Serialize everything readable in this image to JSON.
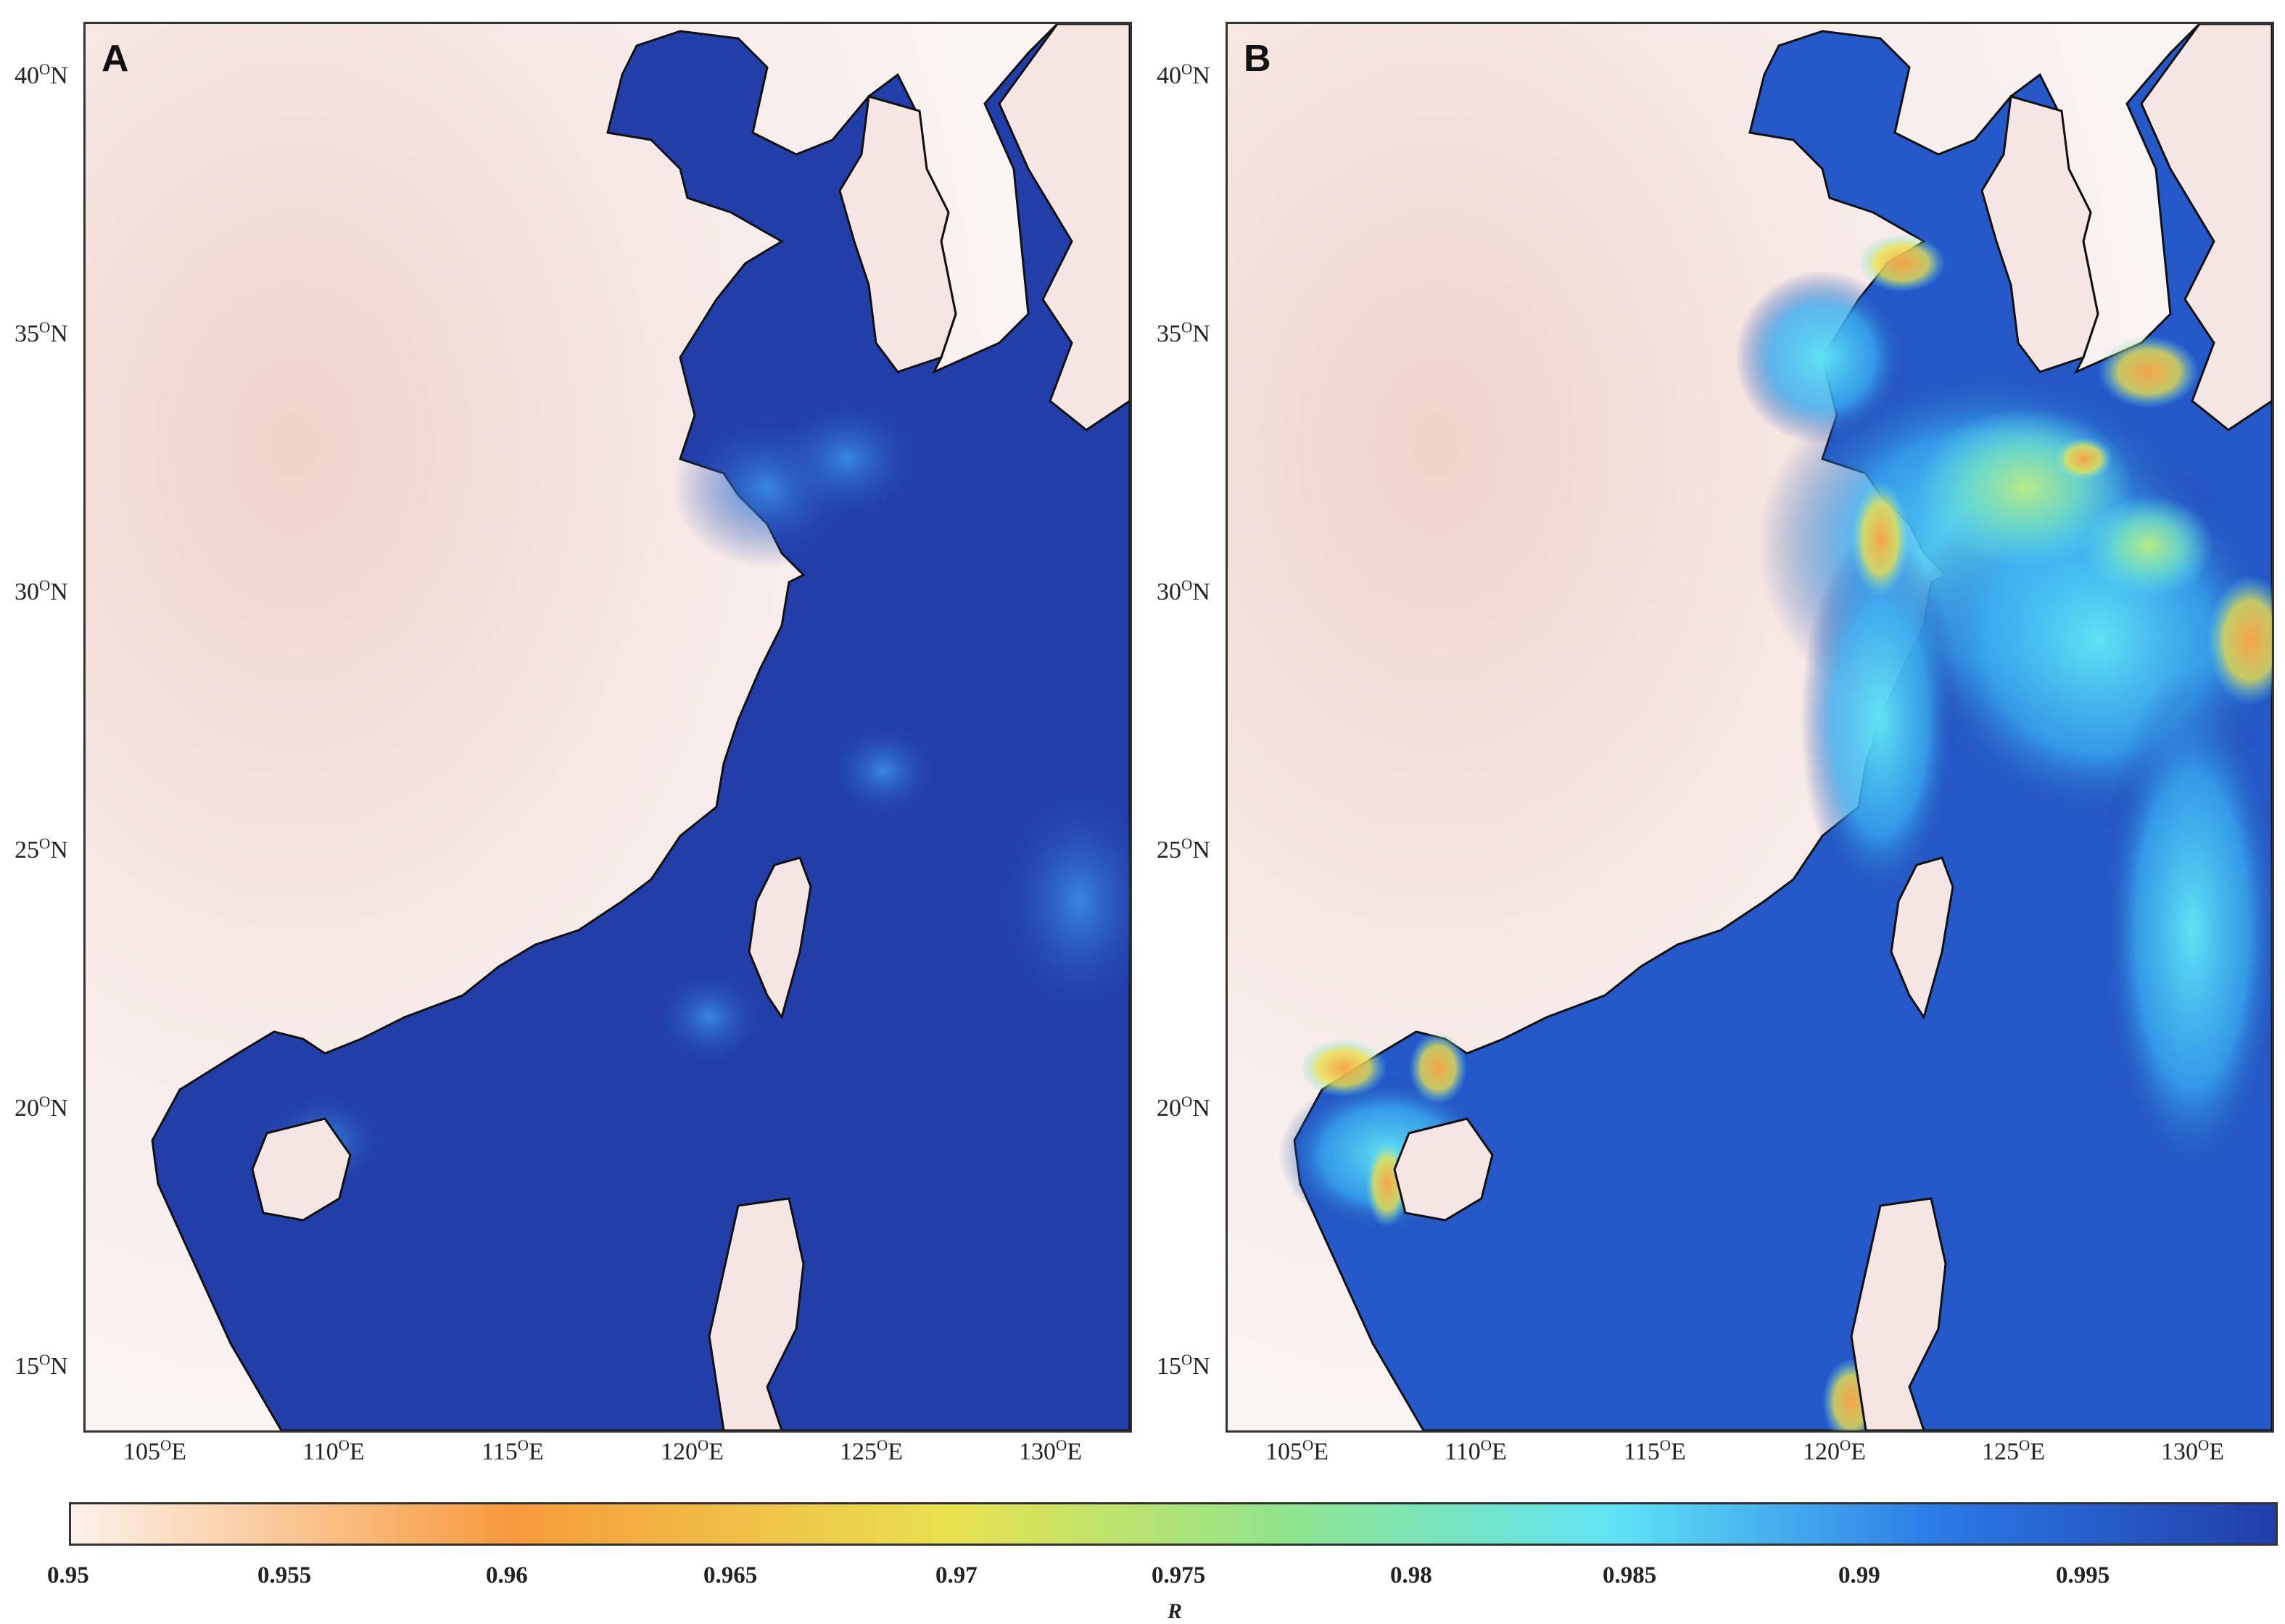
{
  "panels": [
    {
      "id": "a",
      "letter": "A"
    },
    {
      "id": "b",
      "letter": "B"
    }
  ],
  "lat_ticks": [
    "40",
    "35",
    "30",
    "25",
    "20",
    "15"
  ],
  "lon_ticks": [
    "105",
    "110",
    "115",
    "120",
    "125",
    "130"
  ],
  "lat_suffix": "N",
  "lon_suffix": "E",
  "degree_mark": "O",
  "colorbar": {
    "ticks": [
      "0.95",
      "0.955",
      "0.96",
      "0.965",
      "0.97",
      "0.975",
      "0.98",
      "0.985",
      "0.99",
      "0.995"
    ],
    "label": "R",
    "range": [
      0.95,
      0.9995
    ],
    "colors": {
      "low": "#fdf1ea",
      "orange": "#f79a3c",
      "yellow": "#e9e24f",
      "green": "#8fe48b",
      "cyan": "#5fe3f5",
      "blue": "#2a78e6",
      "navy": "#223ea9"
    }
  }
}
